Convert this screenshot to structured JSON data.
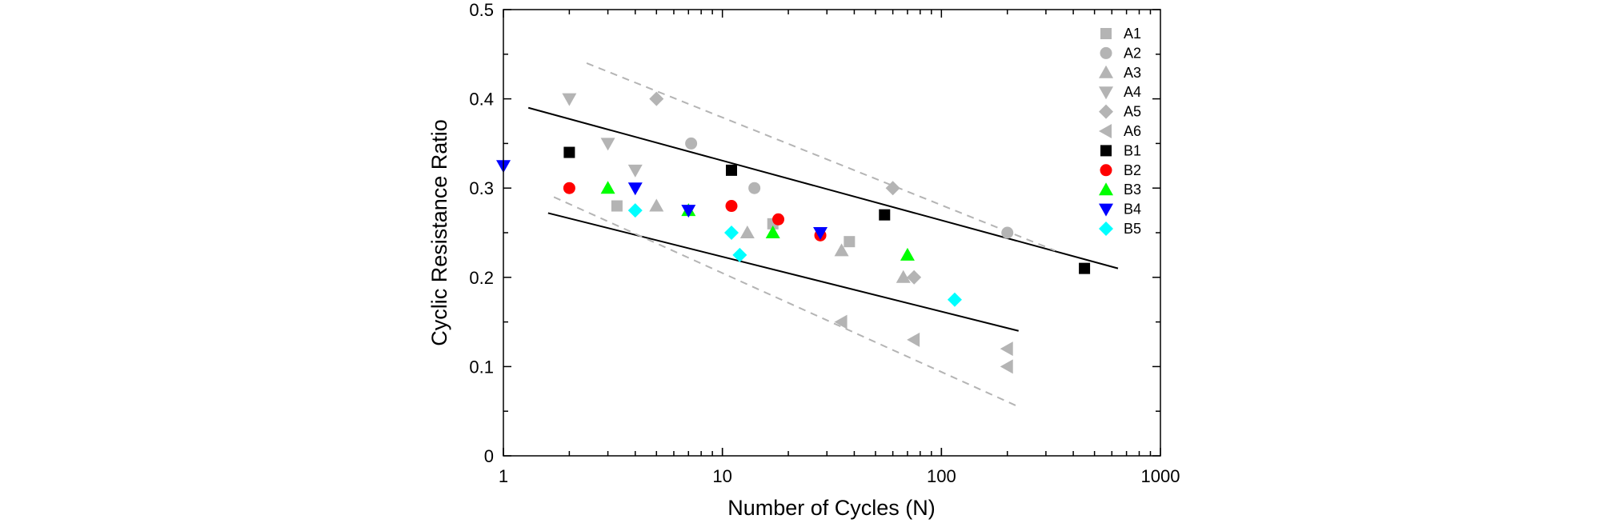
{
  "chart_data": {
    "type": "scatter",
    "title": "",
    "xlabel": "Number of Cycles (N)",
    "ylabel": "Cyclic Resistance Ratio",
    "xscale": "log",
    "xlim": [
      1,
      1000
    ],
    "ylim": [
      0,
      0.5
    ],
    "x_ticks": [
      {
        "value": 1,
        "label": "1"
      },
      {
        "value": 10,
        "label": "10"
      },
      {
        "value": 100,
        "label": "100"
      },
      {
        "value": 1000,
        "label": "1000"
      }
    ],
    "y_ticks": [
      {
        "value": 0,
        "label": "0"
      },
      {
        "value": 0.1,
        "label": "0.1"
      },
      {
        "value": 0.2,
        "label": "0.2"
      },
      {
        "value": 0.3,
        "label": "0.3"
      },
      {
        "value": 0.4,
        "label": "0.4"
      },
      {
        "value": 0.5,
        "label": "0.5"
      }
    ],
    "grid": false,
    "legend_position": "top-right",
    "series": [
      {
        "name": "A1",
        "marker": "square",
        "color": "#b4b4b4",
        "points": [
          [
            3.3,
            0.28
          ],
          [
            17,
            0.26
          ],
          [
            38,
            0.24
          ]
        ]
      },
      {
        "name": "A2",
        "marker": "circle",
        "color": "#b4b4b4",
        "points": [
          [
            7.2,
            0.35
          ],
          [
            14,
            0.3
          ],
          [
            200,
            0.25
          ]
        ]
      },
      {
        "name": "A3",
        "marker": "triangle-up",
        "color": "#b4b4b4",
        "points": [
          [
            5,
            0.28
          ],
          [
            13,
            0.25
          ],
          [
            35,
            0.23
          ],
          [
            67,
            0.2
          ]
        ]
      },
      {
        "name": "A4",
        "marker": "triangle-down",
        "color": "#b4b4b4",
        "points": [
          [
            2,
            0.4
          ],
          [
            3,
            0.35
          ],
          [
            4,
            0.32
          ]
        ]
      },
      {
        "name": "A5",
        "marker": "diamond",
        "color": "#b4b4b4",
        "points": [
          [
            5,
            0.4
          ],
          [
            60,
            0.3
          ],
          [
            75,
            0.2
          ]
        ]
      },
      {
        "name": "A6",
        "marker": "triangle-left",
        "color": "#b4b4b4",
        "points": [
          [
            35,
            0.15
          ],
          [
            75,
            0.13
          ],
          [
            200,
            0.12
          ],
          [
            200,
            0.1
          ]
        ]
      },
      {
        "name": "B1",
        "marker": "square",
        "color": "#000000",
        "points": [
          [
            2,
            0.34
          ],
          [
            11,
            0.32
          ],
          [
            55,
            0.27
          ],
          [
            450,
            0.21
          ]
        ]
      },
      {
        "name": "B2",
        "marker": "circle",
        "color": "#ff0000",
        "points": [
          [
            2,
            0.3
          ],
          [
            11,
            0.28
          ],
          [
            18,
            0.265
          ],
          [
            28,
            0.247
          ]
        ]
      },
      {
        "name": "B3",
        "marker": "triangle-up",
        "color": "#00ff00",
        "points": [
          [
            3,
            0.3
          ],
          [
            7,
            0.275
          ],
          [
            17,
            0.25
          ],
          [
            70,
            0.225
          ]
        ]
      },
      {
        "name": "B4",
        "marker": "triangle-down",
        "color": "#0000ff",
        "points": [
          [
            1,
            0.325
          ],
          [
            4,
            0.3
          ],
          [
            7,
            0.275
          ],
          [
            28,
            0.25
          ]
        ]
      },
      {
        "name": "B5",
        "marker": "diamond",
        "color": "#00ffff",
        "points": [
          [
            4,
            0.275
          ],
          [
            11,
            0.25
          ],
          [
            12,
            0.225
          ],
          [
            115,
            0.175
          ]
        ]
      }
    ],
    "lines": [
      {
        "style": "solid",
        "color": "#000000",
        "from": [
          1.3,
          0.39
        ],
        "to": [
          640,
          0.21
        ]
      },
      {
        "style": "solid",
        "color": "#000000",
        "from": [
          1.6,
          0.272
        ],
        "to": [
          225,
          0.14
        ]
      },
      {
        "style": "dashed",
        "color": "#b4b4b4",
        "from": [
          2.4,
          0.44
        ],
        "to": [
          330,
          0.23
        ]
      },
      {
        "style": "dashed",
        "color": "#b4b4b4",
        "from": [
          1.7,
          0.29
        ],
        "to": [
          225,
          0.055
        ]
      }
    ]
  }
}
